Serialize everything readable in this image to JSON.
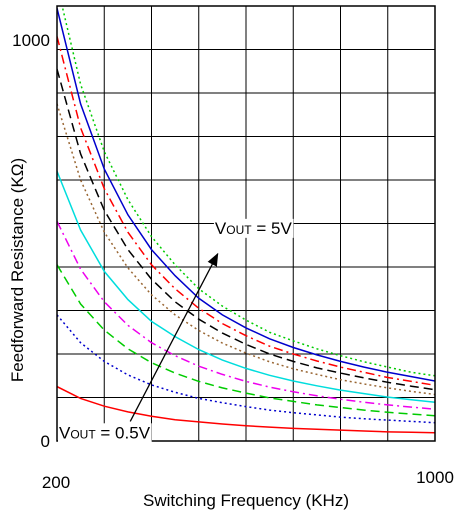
{
  "chart_data": {
    "type": "line",
    "title": "",
    "xlabel": "Switching Frequency (KHz)",
    "ylabel": "Feedforward Resistance (KΩ)",
    "xlim": [
      200,
      1000
    ],
    "ylim": [
      0,
      1000
    ],
    "x_tick_labels": [
      "200",
      "1000"
    ],
    "y_tick_labels": [
      "0",
      "1000"
    ],
    "grid": true,
    "x": [
      200,
      250,
      300,
      350,
      400,
      450,
      500,
      550,
      600,
      650,
      700,
      750,
      800,
      850,
      900,
      950,
      1000
    ],
    "series": [
      {
        "color": "#00cc00",
        "style": "dotted",
        "values": [
          1050,
          820,
          665,
          555,
          470,
          405,
          350,
          310,
          278,
          250,
          230,
          212,
          196,
          182,
          170,
          158,
          150
        ]
      },
      {
        "color": "#0000cc",
        "style": "solid",
        "values": [
          995,
          775,
          625,
          520,
          440,
          380,
          328,
          290,
          260,
          235,
          215,
          198,
          183,
          170,
          158,
          148,
          138
        ]
      },
      {
        "color": "#ff0000",
        "style": "dashdot",
        "values": [
          930,
          720,
          580,
          480,
          405,
          350,
          305,
          270,
          242,
          218,
          200,
          184,
          170,
          158,
          146,
          137,
          128
        ]
      },
      {
        "color": "#000000",
        "style": "dashed",
        "values": [
          855,
          660,
          530,
          440,
          372,
          320,
          280,
          248,
          222,
          200,
          183,
          168,
          156,
          145,
          135,
          126,
          118
        ]
      },
      {
        "color": "#996633",
        "style": "dotted",
        "values": [
          775,
          600,
          480,
          398,
          336,
          290,
          254,
          225,
          202,
          182,
          166,
          153,
          141,
          131,
          122,
          114,
          107
        ]
      },
      {
        "color": "#00dddd",
        "style": "solid",
        "values": [
          620,
          485,
          390,
          325,
          275,
          240,
          210,
          186,
          167,
          151,
          138,
          127,
          117,
          109,
          101,
          95,
          89
        ]
      },
      {
        "color": "#ee00ee",
        "style": "dashdot",
        "values": [
          505,
          395,
          320,
          266,
          226,
          196,
          172,
          153,
          137,
          124,
          113,
          104,
          96,
          89,
          83,
          78,
          73
        ]
      },
      {
        "color": "#00cc00",
        "style": "dashed",
        "values": [
          405,
          315,
          255,
          212,
          180,
          156,
          137,
          122,
          110,
          99,
          91,
          83,
          77,
          71,
          66,
          62,
          58
        ]
      },
      {
        "color": "#0000cc",
        "style": "dotted",
        "values": [
          290,
          226,
          183,
          152,
          129,
          112,
          98,
          88,
          79,
          71,
          65,
          60,
          55,
          51,
          48,
          45,
          42
        ]
      },
      {
        "color": "#ff0000",
        "style": "solid",
        "values": [
          125,
          98,
          80,
          67,
          57,
          49,
          44,
          39,
          35,
          32,
          29,
          27,
          25,
          23,
          21,
          20,
          19
        ]
      }
    ],
    "annotations": [
      {
        "main_start": "V",
        "sub": "OUT",
        "main_end": " = 5V",
        "x": 530,
        "y": 490
      },
      {
        "main_start": "V",
        "sub": "OUT",
        "main_end": " = 0.5V",
        "x": 200,
        "y": 20
      }
    ],
    "arrow": {
      "from": [
        355,
        45
      ],
      "to": [
        540,
        430
      ]
    }
  }
}
